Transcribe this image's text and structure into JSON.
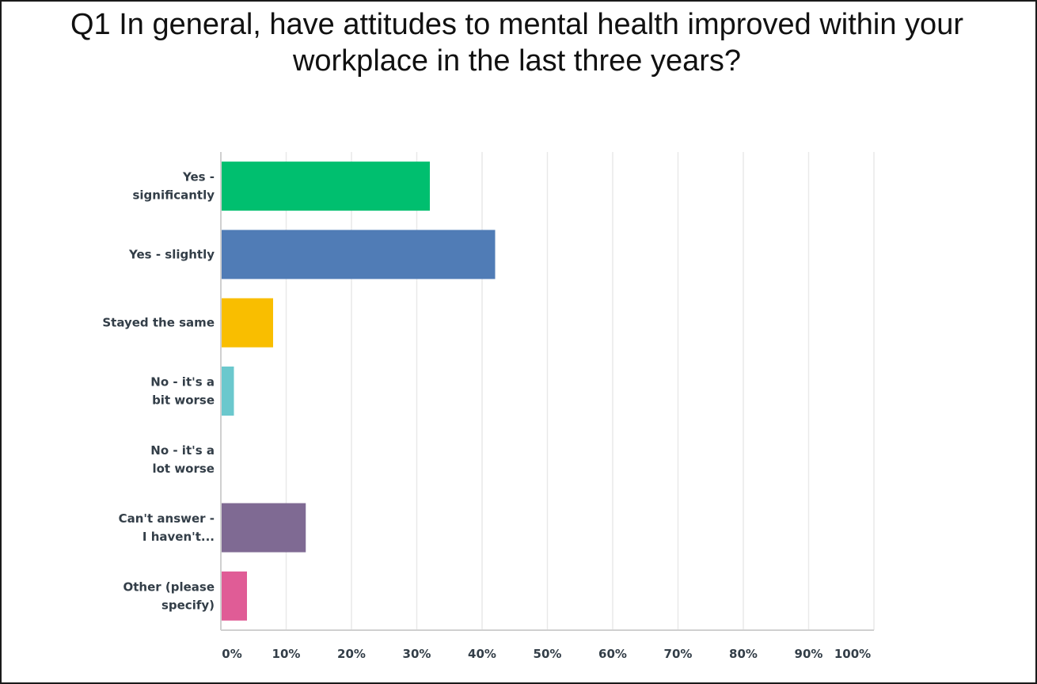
{
  "chart_data": {
    "type": "bar",
    "orientation": "horizontal",
    "title_lines": [
      "Q1 In general, have attitudes to mental health improved within your",
      "workplace in the last three years?"
    ],
    "categories": [
      [
        "Yes -",
        "significantly"
      ],
      [
        "Yes - slightly"
      ],
      [
        "Stayed the same"
      ],
      [
        "No - it's a",
        "bit worse"
      ],
      [
        "No - it's a",
        "lot worse"
      ],
      [
        "Can't answer -",
        "I haven't..."
      ],
      [
        "Other (please",
        "specify)"
      ]
    ],
    "values": [
      32,
      42,
      8,
      2,
      0,
      13,
      4
    ],
    "colors": [
      "#00bf6f",
      "#507cb6",
      "#f9be00",
      "#6bc8cd",
      "#ff8b4f",
      "#7f6a93",
      "#e05c96"
    ],
    "xlim": [
      0,
      100
    ],
    "xticks": [
      0,
      10,
      20,
      30,
      40,
      50,
      60,
      70,
      80,
      90,
      100
    ],
    "xtick_labels": [
      "0%",
      "10%",
      "20%",
      "30%",
      "40%",
      "50%",
      "60%",
      "70%",
      "80%",
      "90%",
      "100%"
    ],
    "grid": true,
    "legend": "none",
    "xlabel": "",
    "ylabel": ""
  }
}
